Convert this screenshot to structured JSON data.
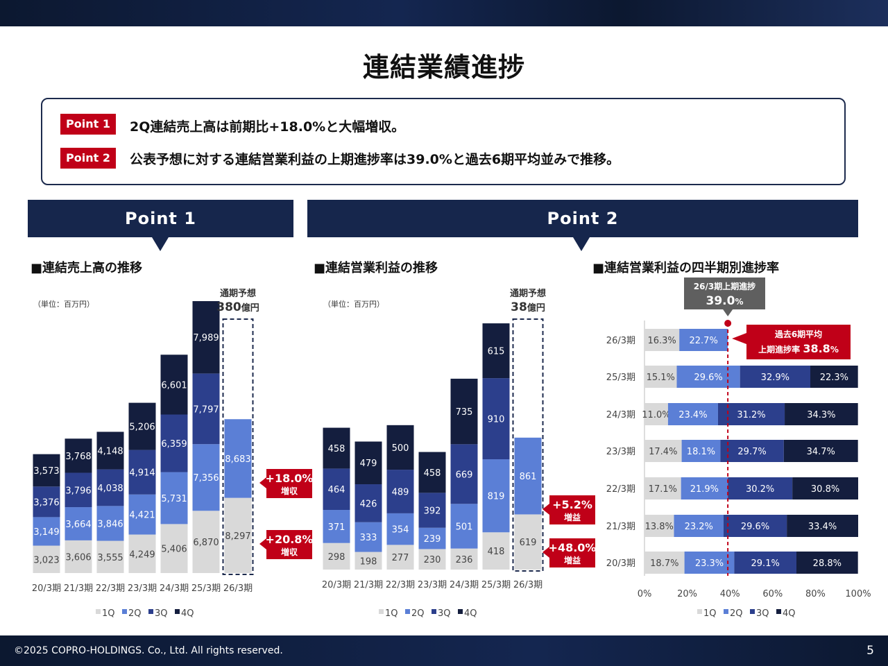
{
  "header": {
    "title": "連結業績進捗"
  },
  "points": [
    {
      "tag": "Point 1",
      "text": "2Q連結売上高は前期比+18.0%と大幅増収。"
    },
    {
      "tag": "Point 2",
      "text": "公表予想に対する連結営業利益の上期進捗率は39.0%と過去6期平均並みで推移。"
    }
  ],
  "banners": {
    "left": "Point 1",
    "right": "Point 2"
  },
  "footer": {
    "copyright": "©2025 COPRO-HOLDINGS. Co., Ltd. All rights reserved.",
    "page": "5"
  },
  "colors": {
    "q1": "#d9d9d9",
    "q2": "#5b7fd6",
    "q3": "#2c3f8c",
    "q4": "#141e3e",
    "accent": "#c00018",
    "navy": "#16264c"
  },
  "chart_data": [
    {
      "type": "bar",
      "stacked": true,
      "title": "■連結売上高の推移",
      "unit": "（単位：百万円）",
      "categories": [
        "20/3期",
        "21/3期",
        "22/3期",
        "23/3期",
        "24/3期",
        "25/3期",
        "26/3期"
      ],
      "legend": [
        "1Q",
        "2Q",
        "3Q",
        "4Q"
      ],
      "series": [
        {
          "name": "1Q",
          "values": [
            3023,
            3606,
            3555,
            4249,
            5406,
            6870,
            8297
          ]
        },
        {
          "name": "2Q",
          "values": [
            3149,
            3664,
            3846,
            4421,
            5731,
            7356,
            8683
          ]
        },
        {
          "name": "3Q",
          "values": [
            3376,
            3796,
            4038,
            4914,
            6359,
            7797,
            null
          ]
        },
        {
          "name": "4Q",
          "values": [
            3573,
            3768,
            4148,
            5206,
            6601,
            7989,
            null
          ]
        }
      ],
      "forecast": {
        "label": "通期予想",
        "value": "380",
        "unit": "億円"
      },
      "growth": [
        {
          "value": "+18.0%",
          "label": "増収"
        },
        {
          "value": "+20.8%",
          "label": "増収"
        }
      ]
    },
    {
      "type": "bar",
      "stacked": true,
      "title": "■連結営業利益の推移",
      "unit": "（単位：百万円）",
      "categories": [
        "20/3期",
        "21/3期",
        "22/3期",
        "23/3期",
        "24/3期",
        "25/3期",
        "26/3期"
      ],
      "legend": [
        "1Q",
        "2Q",
        "3Q",
        "4Q"
      ],
      "series": [
        {
          "name": "1Q",
          "values": [
            298,
            198,
            277,
            230,
            236,
            418,
            619
          ]
        },
        {
          "name": "2Q",
          "values": [
            371,
            333,
            354,
            239,
            501,
            819,
            861
          ]
        },
        {
          "name": "3Q",
          "values": [
            464,
            426,
            489,
            392,
            669,
            910,
            null
          ]
        },
        {
          "name": "4Q",
          "values": [
            458,
            479,
            500,
            458,
            735,
            615,
            null
          ]
        }
      ],
      "forecast": {
        "label": "通期予想",
        "value": "38",
        "unit": "億円"
      },
      "growth": [
        {
          "value": "+5.2%",
          "label": "増益"
        },
        {
          "value": "+48.0%",
          "label": "増益"
        }
      ]
    },
    {
      "type": "bar",
      "horizontal": true,
      "stacked": true,
      "title": "■連結営業利益の四半期別進捗率",
      "categories": [
        "26/3期",
        "25/3期",
        "24/3期",
        "23/3期",
        "22/3期",
        "21/3期",
        "20/3期"
      ],
      "legend": [
        "1Q",
        "2Q",
        "3Q",
        "4Q"
      ],
      "x_ticks": [
        "0%",
        "20%",
        "40%",
        "60%",
        "80%",
        "100%"
      ],
      "xlim": [
        0,
        100
      ],
      "series": [
        {
          "name": "1Q",
          "values": [
            16.3,
            15.1,
            11.0,
            17.4,
            17.1,
            13.8,
            18.7
          ],
          "labels": [
            "16.3%",
            "15.1%",
            "11.0%",
            "17.4%",
            "17.1%",
            "13.8%",
            "18.7%"
          ]
        },
        {
          "name": "2Q",
          "values": [
            22.7,
            29.6,
            23.4,
            18.1,
            21.9,
            23.2,
            23.3
          ],
          "labels": [
            "22.7%",
            "29.6%",
            "23.4%",
            "18.1%",
            "21.9%",
            "23.2%",
            "23.3%"
          ]
        },
        {
          "name": "3Q",
          "values": [
            null,
            32.9,
            31.2,
            29.7,
            30.2,
            29.6,
            29.1
          ],
          "labels": [
            "",
            "32.9%",
            "31.2%",
            "29.7%",
            "30.2%",
            "29.6%",
            "29.1%"
          ]
        },
        {
          "name": "4Q",
          "values": [
            null,
            22.3,
            34.3,
            34.7,
            30.8,
            33.4,
            28.8
          ],
          "labels": [
            "",
            "22.3%",
            "34.3%",
            "34.7%",
            "30.8%",
            "33.4%",
            "28.8%"
          ]
        }
      ],
      "marker": {
        "value": 39.0,
        "label": "26/3期上期進捗",
        "text": "39.0",
        "unit": "%"
      },
      "average": {
        "label": "過去6期平均",
        "text_prefix": "上期進捗率",
        "value": "38.8",
        "unit": "%"
      }
    }
  ]
}
